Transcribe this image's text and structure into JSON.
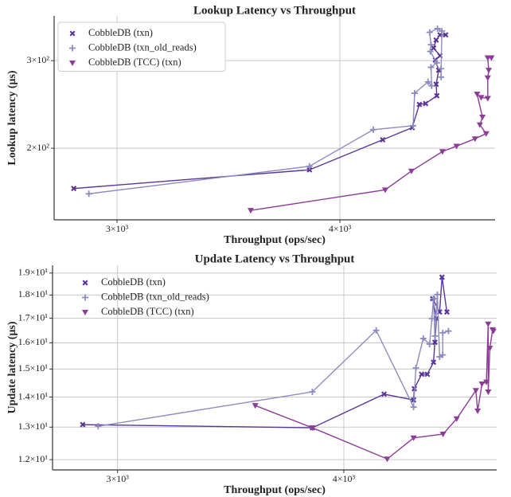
{
  "chart_data": [
    {
      "type": "line",
      "title": "Lookup Latency vs Throughput",
      "x_label": "Throughput (ops/sec)",
      "y_label": "Lookup latency (μs)",
      "xscale": "log",
      "yscale": "log",
      "grid": true,
      "legend": "upper left",
      "legend_frame": true,
      "xlim": [
        2766,
        4887
      ],
      "ylim": [
        143.6,
        369
      ],
      "xticks": [
        {
          "value": 3000,
          "label": "3×10³"
        },
        {
          "value": 4000,
          "label": "4×10³"
        }
      ],
      "yticks": [
        {
          "value": 200,
          "label": "2×10²"
        },
        {
          "value": 300,
          "label": "3×10²"
        }
      ],
      "series": [
        {
          "name": "CobbleDB (txn)",
          "color": "#5a3496",
          "marker": "x",
          "x": [
            2837,
            3846,
            4227,
            4391,
            4432,
            4468,
            4533,
            4529,
            4544,
            4524,
            4552,
            4514,
            4529,
            4552,
            4585
          ],
          "values": [
            166,
            181,
            208,
            220,
            245,
            246,
            255,
            269,
            287,
            301,
            307,
            318,
            330,
            338,
            338
          ]
        },
        {
          "name": "CobbleDB (txn_old_reads)",
          "color": "#8b8bc0",
          "marker": "plus",
          "x": [
            2893,
            3846,
            4176,
            4396,
            4405,
            4482,
            4503,
            4499,
            4533,
            4495,
            4499,
            4491,
            4537,
            4563,
            4558,
            4558
          ],
          "values": [
            162,
            184,
            218,
            222,
            258,
            272,
            267,
            291,
            297,
            313,
            323,
            342,
            348,
            344,
            289,
            278
          ]
        },
        {
          "name": "CobbleDB (TCC) (txn)",
          "color": "#8c3b96",
          "marker": "tri",
          "x": [
            3565,
            4241,
            4387,
            4566,
            4650,
            4762,
            4831,
            4792,
            4808,
            4775,
            4800,
            4841,
            4841,
            4847,
            4841,
            4864
          ],
          "values": [
            150,
            165,
            180,
            197,
            202,
            209,
            214,
            223,
            231,
            257,
            253,
            252,
            277,
            287,
            304,
            304
          ]
        }
      ]
    },
    {
      "type": "line",
      "title": "Update Latency vs Throughput",
      "x_label": "Throughput (ops/sec)",
      "y_label": "Update latency (μs)",
      "xscale": "log",
      "yscale": "log",
      "grid": true,
      "legend": "upper left",
      "legend_frame": false,
      "xlim": [
        2762,
        4858
      ],
      "ylim": [
        11.7,
        19.37
      ],
      "xticks": [
        {
          "value": 3000,
          "label": "3×10³"
        },
        {
          "value": 4000,
          "label": "4×10³"
        }
      ],
      "yticks": [
        {
          "value": 12,
          "label": "1.2×10¹"
        },
        {
          "value": 13,
          "label": "1.3×10¹"
        },
        {
          "value": 14,
          "label": "1.4×10¹"
        },
        {
          "value": 15,
          "label": "1.5×10¹"
        },
        {
          "value": 16,
          "label": "1.6×10¹"
        },
        {
          "value": 17,
          "label": "1.7×10¹"
        },
        {
          "value": 18,
          "label": "1.8×10¹"
        },
        {
          "value": 19,
          "label": "1.9×10¹"
        }
      ],
      "series": [
        {
          "name": "CobbleDB (txn)",
          "color": "#5a3496",
          "marker": "x",
          "x": [
            2870,
            3843,
            4210,
            4371,
            4375,
            4416,
            4448,
            4483,
            4491,
            4500,
            4478,
            4518,
            4532,
            4560
          ],
          "values": [
            13.08,
            12.98,
            14.1,
            13.9,
            14.29,
            14.81,
            14.81,
            15.25,
            16.02,
            16.99,
            17.84,
            17.26,
            18.81,
            17.26
          ]
        },
        {
          "name": "CobbleDB (txn_old_reads)",
          "color": "#8b8bc0",
          "marker": "plus",
          "x": [
            2927,
            3843,
            4168,
            4371,
            4384,
            4425,
            4461,
            4474,
            4483,
            4491,
            4505,
            4518,
            4536,
            4536,
            4569
          ],
          "values": [
            13.03,
            14.18,
            16.5,
            13.66,
            15.04,
            16.17,
            15.95,
            16.99,
            17.84,
            16.27,
            18.02,
            15.46,
            15.53,
            16.4,
            16.47
          ]
        },
        {
          "name": "CobbleDB (TCC) (txn)",
          "color": "#8c3b96",
          "marker": "tri",
          "x": [
            3574,
            3843,
            4227,
            4371,
            4538,
            4617,
            4731,
            4742,
            4768,
            4795,
            4806,
            4806,
            4816,
            4833,
            4838
          ],
          "values": [
            13.71,
            12.98,
            12.02,
            12.66,
            12.78,
            13.27,
            14.23,
            13.53,
            14.46,
            14.53,
            16.76,
            14.18,
            15.79,
            16.53,
            16.47
          ]
        }
      ]
    }
  ]
}
